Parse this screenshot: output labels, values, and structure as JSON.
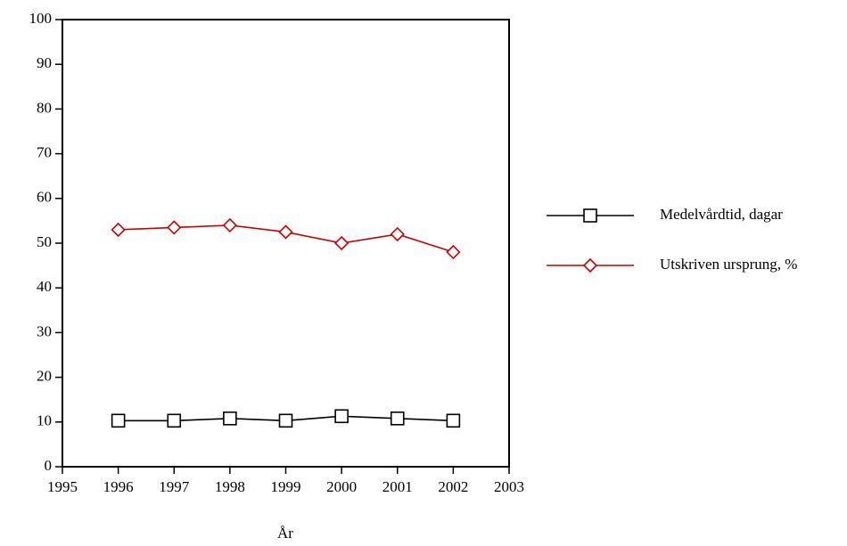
{
  "chart_data": {
    "type": "line",
    "x": [
      1996,
      1997,
      1998,
      1999,
      2000,
      2001,
      2002
    ],
    "xlim": [
      1995,
      2003
    ],
    "xticks": [
      1995,
      1996,
      1997,
      1998,
      1999,
      2000,
      2001,
      2002,
      2003
    ],
    "ylim": [
      0,
      100
    ],
    "yticks": [
      0,
      10,
      20,
      30,
      40,
      50,
      60,
      70,
      80,
      90,
      100
    ],
    "x_label": "År",
    "legend": "right",
    "series": [
      {
        "name": "Medelvårdtid, dagar",
        "color": "#000000",
        "marker": "square",
        "values": [
          10.3,
          10.3,
          10.8,
          10.3,
          11.3,
          10.8,
          10.3
        ]
      },
      {
        "name": "Utskriven ursprung, %",
        "color": "#cc0000",
        "marker": "diamond",
        "values": [
          53,
          53.5,
          54,
          52.5,
          50,
          52,
          48
        ]
      }
    ]
  }
}
